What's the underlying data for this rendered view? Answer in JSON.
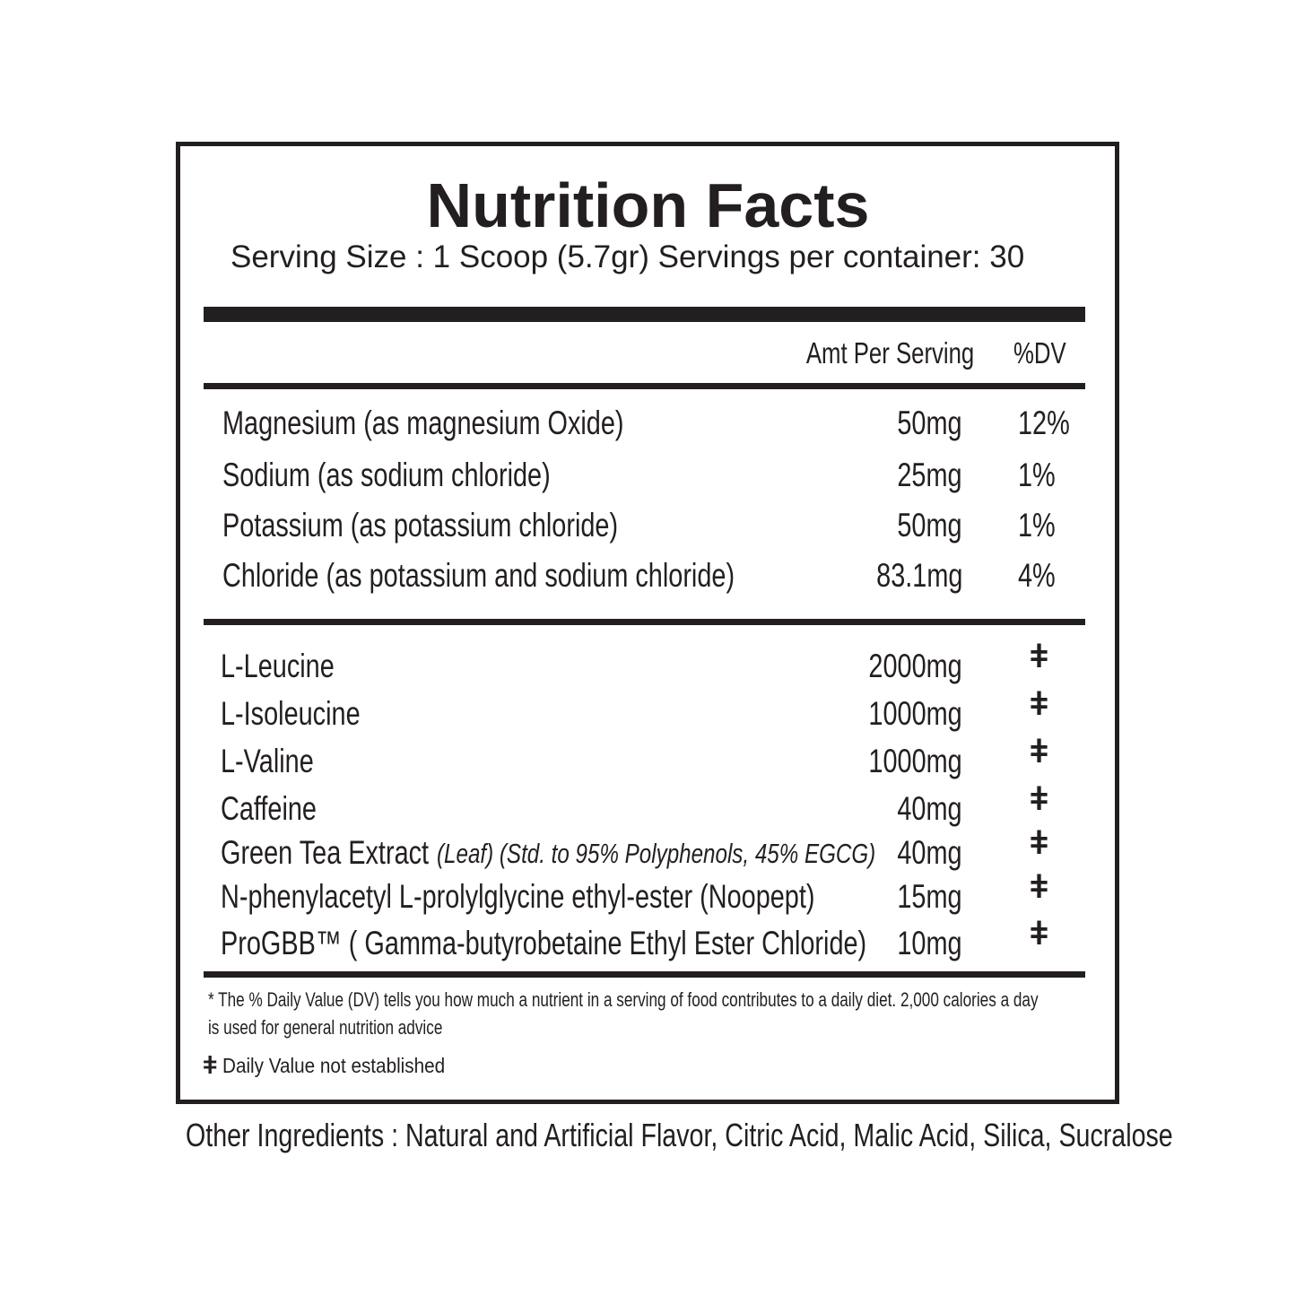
{
  "title": "Nutrition Facts",
  "serving_line": "Serving Size : 1 Scoop (5.7gr)  Servings per container: 30",
  "header": {
    "amount": "Amt Per Serving",
    "dv": "%DV"
  },
  "minerals": [
    {
      "name": "Magnesium (as magnesium Oxide)",
      "amount": "50mg",
      "dv": "12%"
    },
    {
      "name": "Sodium (as sodium chloride)",
      "amount": "25mg",
      "dv": "1%"
    },
    {
      "name": "Potassium (as potassium chloride)",
      "amount": "50mg",
      "dv": "1%"
    },
    {
      "name": "Chloride (as potassium and sodium chloride)",
      "amount": "83.1mg",
      "dv": "4%"
    }
  ],
  "others": [
    {
      "name": "L-Leucine",
      "note": "",
      "amount": "2000mg",
      "dv": "ǂ"
    },
    {
      "name": "L-Isoleucine",
      "note": "",
      "amount": "1000mg",
      "dv": "ǂ"
    },
    {
      "name": "L-Valine",
      "note": "",
      "amount": "1000mg",
      "dv": "ǂ"
    },
    {
      "name": "Caffeine",
      "note": "",
      "amount": "40mg",
      "dv": "ǂ"
    },
    {
      "name": "Green Tea Extract",
      "note": "(Leaf) (Std. to 95% Polyphenols, 45% EGCG)",
      "amount": "40mg",
      "dv": "ǂ"
    },
    {
      "name": "N-phenylacetyl L-prolylglycine ethyl-ester (Noopept)",
      "note": "",
      "amount": "15mg",
      "dv": "ǂ"
    },
    {
      "name": "ProGBB™ ( Gamma-butyrobetaine Ethyl Ester Chloride)",
      "note": "",
      "amount": "10mg",
      "dv": "ǂ"
    }
  ],
  "footnote_line1": "* The % Daily Value (DV) tells you how much a nutrient in a serving of food contributes to a daily diet. 2,000 calories a day",
  "footnote_line2": "is used for general nutrition advice",
  "dagger_symbol": "ǂ",
  "dagger_note": "Daily Value not established",
  "other_ingredients": "Other Ingredients : Natural and Artificial Flavor, Citric Acid, Malic Acid, Silica, Sucralose"
}
